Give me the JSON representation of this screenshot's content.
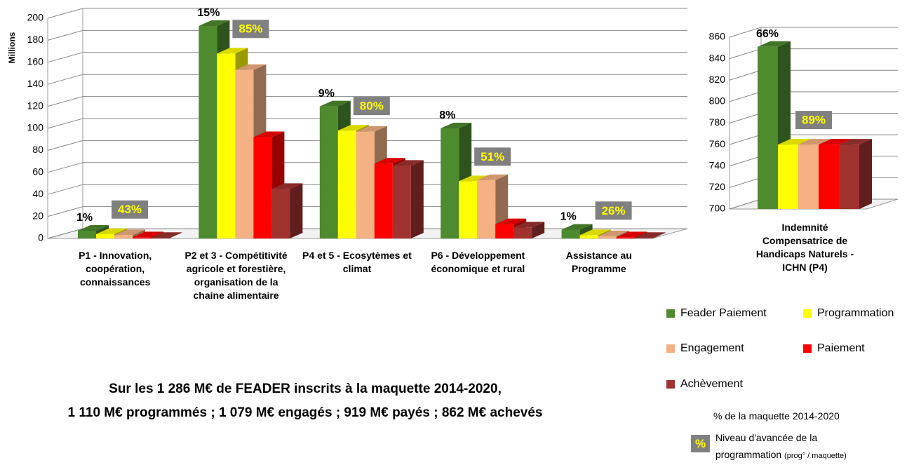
{
  "chart_data": [
    {
      "type": "bar",
      "ylabel": "Millions",
      "categories": [
        "P1 - Innovation, coopération, connaissances",
        "P2 et 3 - Compétitivité agricole et forestière, organisation de la chaine alimentaire",
        "P4 et 5 - Ecosytèmes et climat",
        "P6 - Développement économique et rural",
        "Assistance au Programme"
      ],
      "series": [
        {
          "name": "Feader Paiement",
          "color": "#4e8a2e",
          "values": [
            7,
            193,
            120,
            100,
            8
          ]
        },
        {
          "name": "Programmation",
          "color": "#ffff00",
          "values": [
            4,
            168,
            98,
            52,
            3
          ]
        },
        {
          "name": "Engagement",
          "color": "#f4b183",
          "values": [
            3,
            153,
            97,
            53,
            2
          ]
        },
        {
          "name": "Paiement",
          "color": "#ff0000",
          "values": [
            1,
            92,
            68,
            13,
            1
          ]
        },
        {
          "name": "Achèvement",
          "color": "#a0322f",
          "values": [
            0.5,
            45,
            66,
            10,
            0.5
          ]
        }
      ],
      "ylim": [
        0,
        200
      ],
      "yticks": [
        0,
        20,
        40,
        60,
        80,
        100,
        120,
        140,
        160,
        180,
        200
      ],
      "share_labels": [
        "1%",
        "15%",
        "9%",
        "8%",
        "1%"
      ],
      "progress_labels": [
        "43%",
        "85%",
        "80%",
        "51%",
        "26%"
      ]
    },
    {
      "type": "bar",
      "categories": [
        "Indemnité Compensatrice de Handicaps Naturels - ICHN (P4)"
      ],
      "series": [
        {
          "color": "#4e8a2e",
          "values": [
            851
          ]
        },
        {
          "color": "#ffff00",
          "values": [
            760
          ]
        },
        {
          "color": "#f4b183",
          "values": [
            760
          ]
        },
        {
          "color": "#ff0000",
          "values": [
            760
          ]
        },
        {
          "color": "#a0322f",
          "values": [
            760
          ]
        }
      ],
      "ylim": [
        700,
        860
      ],
      "yticks": [
        700,
        720,
        740,
        760,
        780,
        800,
        820,
        840,
        860
      ],
      "share_labels": [
        "66%"
      ],
      "progress_labels": [
        "89%"
      ]
    }
  ],
  "footnote": [
    "Sur les 1 286 M€ de FEADER inscrits à la maquette 2014-2020,",
    "1 110 M€ programmés ; 1 079 M€ engagés ; 919 M€ payés ; 862 M€ achevés"
  ],
  "legend_note": {
    "title": "% de la maquette 2014-2020",
    "box": "%",
    "text": "Niveau d'avancée de la programmation",
    "small": "(prog° / maquette)"
  }
}
